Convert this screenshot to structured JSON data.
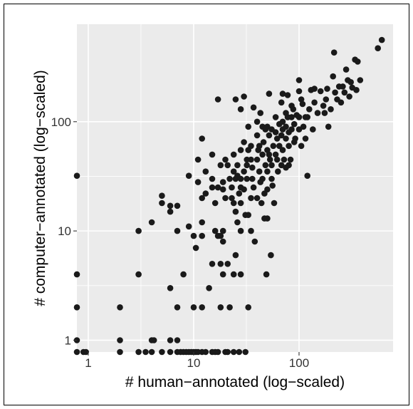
{
  "chart_data": {
    "type": "scatter",
    "title": "",
    "xlabel": "# human−annotated (log−scaled)",
    "ylabel": "# computer−annotated (log−scaled)",
    "x_scale": "log10",
    "y_scale": "log10",
    "xlim": [
      0.78,
      780
    ],
    "ylim": [
      0.78,
      780
    ],
    "x_ticks": [
      {
        "value": 1,
        "label": "1"
      },
      {
        "value": 10,
        "label": "10"
      },
      {
        "value": 100,
        "label": "100"
      }
    ],
    "y_ticks": [
      {
        "value": 1,
        "label": "1"
      },
      {
        "value": 10,
        "label": "10"
      },
      {
        "value": 100,
        "label": "100"
      }
    ],
    "grid": true,
    "background": "#EBEBEB",
    "point_color": "#1a1a1a",
    "series": [
      {
        "points": [
          [
            0.78,
            32
          ],
          [
            0.78,
            4
          ],
          [
            0.78,
            2
          ],
          [
            0.78,
            1
          ],
          [
            0.78,
            0.78
          ],
          [
            0.9,
            0.78
          ],
          [
            0.95,
            0.78
          ],
          [
            2,
            2
          ],
          [
            2,
            1
          ],
          [
            2,
            0.78
          ],
          [
            3,
            10
          ],
          [
            3,
            4
          ],
          [
            3,
            0.78
          ],
          [
            3.5,
            0.78
          ],
          [
            4,
            12
          ],
          [
            4,
            1
          ],
          [
            4.2,
            1
          ],
          [
            4,
            0.78
          ],
          [
            5,
            21
          ],
          [
            5,
            18
          ],
          [
            5,
            0.78
          ],
          [
            6,
            17
          ],
          [
            6,
            15
          ],
          [
            6,
            3
          ],
          [
            6,
            1
          ],
          [
            6,
            0.78
          ],
          [
            7,
            17
          ],
          [
            7,
            10
          ],
          [
            7,
            2
          ],
          [
            7,
            1
          ],
          [
            7,
            0.78
          ],
          [
            7.5,
            0.78
          ],
          [
            8,
            4
          ],
          [
            8,
            0.78
          ],
          [
            8.5,
            0.78
          ],
          [
            9,
            32
          ],
          [
            9,
            11
          ],
          [
            9,
            0.78
          ],
          [
            9.5,
            0.78
          ],
          [
            10,
            9
          ],
          [
            10,
            2
          ],
          [
            10,
            0.78
          ],
          [
            10.5,
            7
          ],
          [
            10.5,
            0.78
          ],
          [
            11,
            45
          ],
          [
            11,
            28
          ],
          [
            11,
            0.78
          ],
          [
            12,
            70
          ],
          [
            12,
            20
          ],
          [
            12,
            12
          ],
          [
            12,
            9
          ],
          [
            12,
            2
          ],
          [
            12,
            0.78
          ],
          [
            13,
            35
          ],
          [
            13,
            22
          ],
          [
            13,
            0.78
          ],
          [
            14,
            3
          ],
          [
            15,
            50
          ],
          [
            15,
            30
          ],
          [
            15,
            25
          ],
          [
            15,
            5
          ],
          [
            15,
            0.78
          ],
          [
            16,
            10
          ],
          [
            16,
            18
          ],
          [
            16,
            0.78
          ],
          [
            17,
            160
          ],
          [
            17,
            25
          ],
          [
            17,
            9
          ],
          [
            17,
            0.78
          ],
          [
            18,
            40
          ],
          [
            18,
            9
          ],
          [
            18,
            5
          ],
          [
            18,
            2
          ],
          [
            19,
            28
          ],
          [
            19,
            24
          ],
          [
            19,
            10
          ],
          [
            19,
            8
          ],
          [
            19,
            4
          ],
          [
            20,
            45
          ],
          [
            20,
            20
          ],
          [
            20,
            0.78
          ],
          [
            21,
            40
          ],
          [
            21,
            5
          ],
          [
            21,
            0.78
          ],
          [
            22,
            30
          ],
          [
            22,
            2
          ],
          [
            23,
            25
          ],
          [
            23,
            20
          ],
          [
            24,
            50
          ],
          [
            24,
            35
          ],
          [
            24,
            18
          ],
          [
            24,
            4
          ],
          [
            24,
            0.78
          ],
          [
            25,
            160
          ],
          [
            25,
            30
          ],
          [
            25,
            15
          ],
          [
            25,
            6
          ],
          [
            26,
            40
          ],
          [
            26,
            32
          ],
          [
            26,
            12
          ],
          [
            27,
            22
          ],
          [
            27,
            0.78
          ],
          [
            28,
            130
          ],
          [
            28,
            55
          ],
          [
            28,
            30
          ],
          [
            28,
            25
          ],
          [
            28,
            18
          ],
          [
            28,
            10
          ],
          [
            28,
            4
          ],
          [
            30,
            170
          ],
          [
            30,
            65
          ],
          [
            30,
            35
          ],
          [
            30,
            24
          ],
          [
            31,
            14
          ],
          [
            31,
            0.78
          ],
          [
            32,
            45
          ],
          [
            32,
            40
          ],
          [
            32,
            30
          ],
          [
            33,
            90
          ],
          [
            33,
            55
          ],
          [
            33,
            14
          ],
          [
            33,
            2
          ],
          [
            35,
            60
          ],
          [
            35,
            45
          ],
          [
            35,
            20
          ],
          [
            35,
            10
          ],
          [
            36,
            38
          ],
          [
            36,
            30
          ],
          [
            37,
            135
          ],
          [
            37,
            25
          ],
          [
            38,
            8
          ],
          [
            40,
            100
          ],
          [
            40,
            75
          ],
          [
            40,
            45
          ],
          [
            40,
            20
          ],
          [
            41,
            55
          ],
          [
            42,
            60
          ],
          [
            42,
            35
          ],
          [
            43,
            120
          ],
          [
            43,
            28
          ],
          [
            44,
            18
          ],
          [
            45,
            90
          ],
          [
            45,
            50
          ],
          [
            45,
            30
          ],
          [
            46,
            65
          ],
          [
            47,
            22
          ],
          [
            47,
            13
          ],
          [
            48,
            85
          ],
          [
            48,
            40
          ],
          [
            49,
            4
          ],
          [
            50,
            90
          ],
          [
            50,
            55
          ],
          [
            50,
            35
          ],
          [
            50,
            24
          ],
          [
            50,
            13
          ],
          [
            52,
            180
          ],
          [
            52,
            75
          ],
          [
            52,
            50
          ],
          [
            53,
            45
          ],
          [
            54,
            6
          ],
          [
            55,
            85
          ],
          [
            55,
            40
          ],
          [
            55,
            30
          ],
          [
            56,
            26
          ],
          [
            57,
            60
          ],
          [
            58,
            18
          ],
          [
            60,
            110
          ],
          [
            60,
            80
          ],
          [
            60,
            50
          ],
          [
            62,
            70
          ],
          [
            62,
            45
          ],
          [
            63,
            35
          ],
          [
            65,
            95
          ],
          [
            65,
            60
          ],
          [
            68,
            150
          ],
          [
            68,
            75
          ],
          [
            68,
            40
          ],
          [
            70,
            180
          ],
          [
            70,
            100
          ],
          [
            70,
            85
          ],
          [
            70,
            55
          ],
          [
            72,
            45
          ],
          [
            75,
            120
          ],
          [
            75,
            90
          ],
          [
            75,
            70
          ],
          [
            75,
            38
          ],
          [
            78,
            175
          ],
          [
            78,
            110
          ],
          [
            80,
            80
          ],
          [
            80,
            60
          ],
          [
            80,
            40
          ],
          [
            83,
            45
          ],
          [
            85,
            140
          ],
          [
            85,
            110
          ],
          [
            85,
            85
          ],
          [
            88,
            130
          ],
          [
            90,
            95
          ],
          [
            90,
            65
          ],
          [
            92,
            70
          ],
          [
            95,
            115
          ],
          [
            100,
            240
          ],
          [
            100,
            190
          ],
          [
            100,
            110
          ],
          [
            100,
            85
          ],
          [
            105,
            160
          ],
          [
            105,
            60
          ],
          [
            108,
            145
          ],
          [
            110,
            90
          ],
          [
            115,
            110
          ],
          [
            115,
            70
          ],
          [
            120,
            110
          ],
          [
            120,
            32
          ],
          [
            125,
            130
          ],
          [
            130,
            195
          ],
          [
            135,
            85
          ],
          [
            140,
            200
          ],
          [
            140,
            150
          ],
          [
            150,
            120
          ],
          [
            160,
            190
          ],
          [
            170,
            140
          ],
          [
            175,
            120
          ],
          [
            180,
            160
          ],
          [
            185,
            200
          ],
          [
            190,
            90
          ],
          [
            200,
            130
          ],
          [
            210,
            260
          ],
          [
            215,
            430
          ],
          [
            220,
            185
          ],
          [
            230,
            160
          ],
          [
            240,
            210
          ],
          [
            250,
            150
          ],
          [
            260,
            210
          ],
          [
            270,
            185
          ],
          [
            280,
            300
          ],
          [
            290,
            240
          ],
          [
            300,
            170
          ],
          [
            310,
            230
          ],
          [
            320,
            205
          ],
          [
            340,
            370
          ],
          [
            350,
            195
          ],
          [
            360,
            355
          ],
          [
            380,
            240
          ],
          [
            560,
            470
          ],
          [
            610,
            560
          ]
        ]
      }
    ]
  }
}
